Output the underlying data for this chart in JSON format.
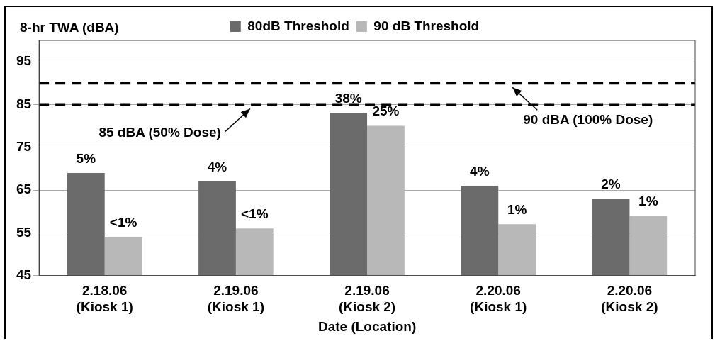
{
  "chart_data": {
    "type": "bar",
    "ylabel": "8-hr TWA (dBA)",
    "xlabel": "Date (Location)",
    "categories": [
      "2.18.06\n(Kiosk 1)",
      "2.19.06\n(Kiosk 1)",
      "2.19.06\n(Kiosk 2)",
      "2.20.06\n(Kiosk 1)",
      "2.20.06\n(Kiosk 2)"
    ],
    "series": [
      {
        "name": "80dB Threshold",
        "color": "#6b6b6b",
        "values": [
          69,
          67,
          83,
          66,
          63
        ]
      },
      {
        "name": "90 dB Threshold",
        "color": "#b8b8b8",
        "values": [
          54,
          56,
          80,
          57,
          59
        ]
      }
    ],
    "ylim": [
      45,
      100
    ],
    "yticks": [
      45,
      55,
      65,
      75,
      85,
      95
    ],
    "grid": "y",
    "legend": "top",
    "ref_lines": [
      {
        "axis": "y",
        "value": 85,
        "label": null,
        "color": "#000000",
        "line_style": "dashed"
      },
      {
        "axis": "y",
        "value": 90,
        "label": null,
        "color": "#000000",
        "line_style": "dashed"
      }
    ],
    "annotations": [
      {
        "text": "85 dBA (50% Dose)",
        "x": "2.19.06\n(Kiosk 1)",
        "y": 85
      },
      {
        "text": "90 dBA (100% Dose)",
        "x": "2.20.06\n(Kiosk 1)",
        "y": 90
      },
      {
        "text": "5%",
        "x": "2.18.06\n(Kiosk 1)",
        "y": 69
      },
      {
        "text": "<1%",
        "x": "2.18.06\n(Kiosk 1)",
        "y": 54
      },
      {
        "text": "4%",
        "x": "2.19.06\n(Kiosk 1)",
        "y": 67
      },
      {
        "text": "<1%",
        "x": "2.19.06\n(Kiosk 1)",
        "y": 56
      },
      {
        "text": "38%",
        "x": "2.19.06\n(Kiosk 2)",
        "y": 83
      },
      {
        "text": "25%",
        "x": "2.19.06\n(Kiosk 2)",
        "y": 80
      },
      {
        "text": "4%",
        "x": "2.20.06\n(Kiosk 1)",
        "y": 66
      },
      {
        "text": "1%",
        "x": "2.20.06\n(Kiosk 1)",
        "y": 57
      },
      {
        "text": "2%",
        "x": "2.20.06\n(Kiosk 2)",
        "y": 63
      },
      {
        "text": "1%",
        "x": "2.20.06\n(Kiosk 2)",
        "y": 59
      }
    ]
  }
}
